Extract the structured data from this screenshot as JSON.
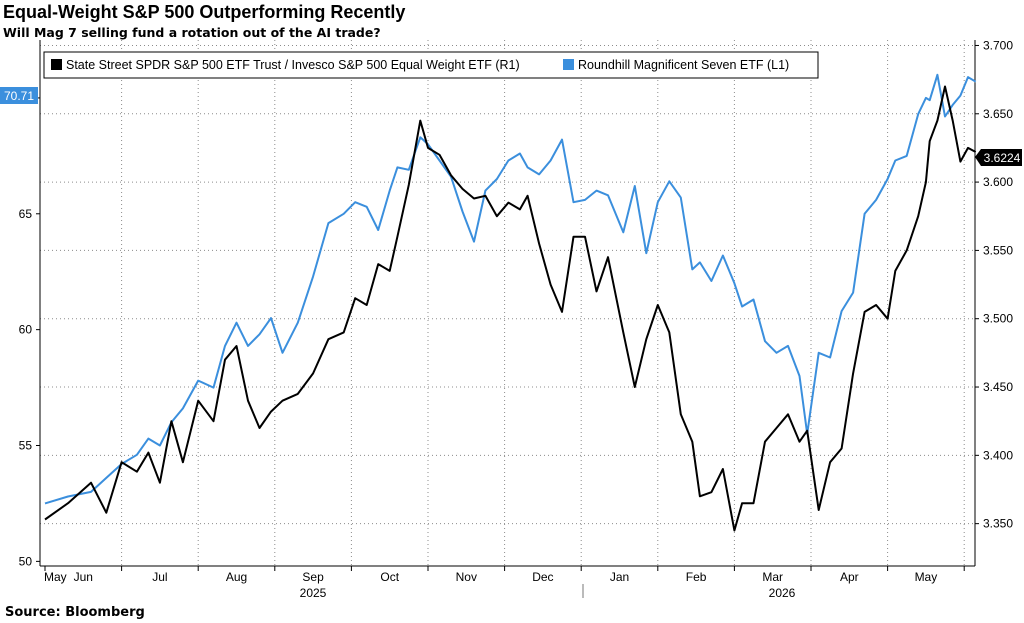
{
  "header": {
    "title": "Equal-Weight S&P 500 Outperforming Recently",
    "subtitle": "Will Mag 7 selling fund a rotation out of the AI trade?"
  },
  "footer": {
    "source": "Source: Bloomberg"
  },
  "colors": {
    "equal_weight": "#000000",
    "mag7": "#3b8fdd",
    "grid": "#8c8c8c"
  },
  "chart_data": {
    "type": "line",
    "grid": true,
    "legend_placement": "top",
    "x_labels": [
      "May",
      "Jun",
      "Jul",
      "Aug",
      "Sep",
      "Oct",
      "Nov",
      "Dec",
      "Jan",
      "Feb",
      "Mar",
      "Apr",
      "May"
    ],
    "x_label_fraction": [
      0,
      0.5,
      1.5,
      2.5,
      3.5,
      4.5,
      5.5,
      6.5,
      7.5,
      8.5,
      9.5,
      10.5,
      11.5
    ],
    "year_labels": [
      "2025",
      "2026"
    ],
    "left_axis": {
      "ticks": [
        50,
        55,
        60,
        65,
        70
      ],
      "range": [
        49.8,
        72.5
      ]
    },
    "right_axis": {
      "ticks": [
        "3.350",
        "3.400",
        "3.450",
        "3.500",
        "3.550",
        "3.600",
        "3.650",
        "3.700"
      ],
      "range": [
        3.319,
        3.704
      ]
    },
    "last_value_labels": {
      "left": "70.71",
      "right": "3.6224"
    },
    "series": [
      {
        "name": "State Street SPDR S&P 500 ETF Trust / Invesco S&P 500 Equal Weight ETF (R1)",
        "axis": "right",
        "x": [
          0,
          0.3,
          0.6,
          0.8,
          1.0,
          1.2,
          1.35,
          1.5,
          1.65,
          1.8,
          2.0,
          2.2,
          2.35,
          2.5,
          2.65,
          2.8,
          2.95,
          3.1,
          3.3,
          3.5,
          3.7,
          3.9,
          4.05,
          4.2,
          4.35,
          4.5,
          4.6,
          4.75,
          4.9,
          5.0,
          5.15,
          5.3,
          5.45,
          5.6,
          5.75,
          5.9,
          6.05,
          6.2,
          6.3,
          6.45,
          6.6,
          6.75,
          6.9,
          7.05,
          7.2,
          7.35,
          7.55,
          7.7,
          7.85,
          8.0,
          8.15,
          8.3,
          8.45,
          8.55,
          8.7,
          8.85,
          9.0,
          9.1,
          9.25,
          9.4,
          9.55,
          9.7,
          9.85,
          9.95,
          10.1,
          10.25,
          10.4,
          10.55,
          10.7,
          10.85,
          11.0,
          11.1,
          11.25,
          11.4,
          11.5,
          11.55,
          11.65,
          11.75,
          11.85,
          11.95,
          12.05,
          12.15
        ],
        "values": [
          3.353,
          3.365,
          3.38,
          3.358,
          3.395,
          3.388,
          3.402,
          3.38,
          3.425,
          3.395,
          3.44,
          3.425,
          3.47,
          3.48,
          3.44,
          3.42,
          3.432,
          3.44,
          3.445,
          3.46,
          3.485,
          3.49,
          3.515,
          3.51,
          3.54,
          3.535,
          3.56,
          3.598,
          3.645,
          3.625,
          3.62,
          3.605,
          3.595,
          3.588,
          3.59,
          3.575,
          3.585,
          3.58,
          3.59,
          3.555,
          3.525,
          3.505,
          3.56,
          3.56,
          3.52,
          3.545,
          3.49,
          3.45,
          3.485,
          3.51,
          3.49,
          3.43,
          3.41,
          3.37,
          3.373,
          3.39,
          3.345,
          3.365,
          3.365,
          3.41,
          3.42,
          3.43,
          3.41,
          3.418,
          3.36,
          3.395,
          3.405,
          3.46,
          3.505,
          3.51,
          3.5,
          3.535,
          3.55,
          3.575,
          3.6,
          3.63,
          3.645,
          3.67,
          3.645,
          3.615,
          3.625,
          3.622
        ]
      },
      {
        "name": "Roundhill Magnificent Seven ETF  (L1)",
        "axis": "left",
        "x": [
          0,
          0.3,
          0.6,
          0.8,
          1.0,
          1.2,
          1.35,
          1.5,
          1.65,
          1.8,
          2.0,
          2.2,
          2.35,
          2.5,
          2.65,
          2.8,
          2.95,
          3.1,
          3.3,
          3.5,
          3.7,
          3.9,
          4.05,
          4.2,
          4.35,
          4.5,
          4.6,
          4.75,
          4.9,
          5.0,
          5.15,
          5.3,
          5.45,
          5.6,
          5.75,
          5.9,
          6.05,
          6.2,
          6.3,
          6.45,
          6.6,
          6.75,
          6.9,
          7.05,
          7.2,
          7.35,
          7.55,
          7.7,
          7.85,
          8.0,
          8.15,
          8.3,
          8.45,
          8.55,
          8.7,
          8.85,
          9.0,
          9.1,
          9.25,
          9.4,
          9.55,
          9.7,
          9.85,
          9.95,
          10.1,
          10.25,
          10.4,
          10.55,
          10.7,
          10.85,
          11.0,
          11.1,
          11.25,
          11.4,
          11.5,
          11.55,
          11.65,
          11.75,
          11.85,
          11.95,
          12.05,
          12.15
        ],
        "values": [
          52.5,
          52.8,
          53.0,
          53.6,
          54.2,
          54.6,
          55.3,
          55.0,
          56.0,
          56.6,
          57.8,
          57.5,
          59.3,
          60.3,
          59.3,
          59.8,
          60.5,
          59.0,
          60.3,
          62.3,
          64.6,
          65.0,
          65.5,
          65.3,
          64.3,
          66.0,
          67.0,
          66.9,
          68.3,
          68.0,
          67.3,
          66.6,
          65.1,
          63.8,
          66.0,
          66.5,
          67.3,
          67.6,
          67.0,
          66.7,
          67.3,
          68.2,
          65.5,
          65.6,
          66.0,
          65.8,
          64.2,
          66.2,
          63.3,
          65.5,
          66.4,
          65.7,
          62.6,
          62.9,
          62.1,
          63.2,
          62.0,
          61.0,
          61.3,
          59.5,
          59.0,
          59.3,
          58.0,
          55.5,
          59.0,
          58.8,
          60.8,
          61.6,
          65.0,
          65.6,
          66.5,
          67.3,
          67.5,
          69.3,
          70.0,
          69.9,
          71.0,
          69.2,
          69.7,
          70.1,
          70.9,
          70.7
        ]
      }
    ]
  }
}
